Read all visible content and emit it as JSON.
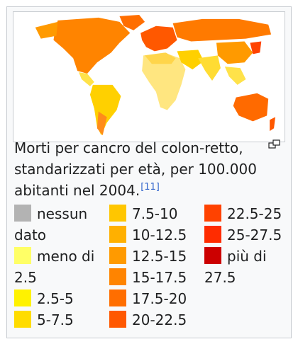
{
  "caption": {
    "text": "Morti per cancro del colon-retto, standarizzati per età, per 100.000 abitanti nel 2004.",
    "ref": "[11]"
  },
  "icons": {
    "enlarge": "magnify-clip-icon"
  },
  "legend": {
    "columns": [
      [
        {
          "label": "nessun dato",
          "color": "#b3b3b3"
        },
        {
          "label": "meno di 2.5",
          "color": "#ffff66"
        },
        {
          "label": "2.5-5",
          "color": "#fff200"
        },
        {
          "label": "5-7.5",
          "color": "#ffdc00"
        }
      ],
      [
        {
          "label": "7.5-10",
          "color": "#ffc600"
        },
        {
          "label": "10-12.5",
          "color": "#ffb000"
        },
        {
          "label": "12.5-15",
          "color": "#ff9a00"
        },
        {
          "label": "15-17.5",
          "color": "#ff8400"
        },
        {
          "label": "17.5-20",
          "color": "#ff6e00"
        },
        {
          "label": "20-22.5",
          "color": "#ff5800"
        }
      ],
      [
        {
          "label": "22.5-25",
          "color": "#ff4200"
        },
        {
          "label": "25-27.5",
          "color": "#ff2c00"
        },
        {
          "label": "più di 27.5",
          "color": "#cc0000"
        }
      ]
    ]
  }
}
